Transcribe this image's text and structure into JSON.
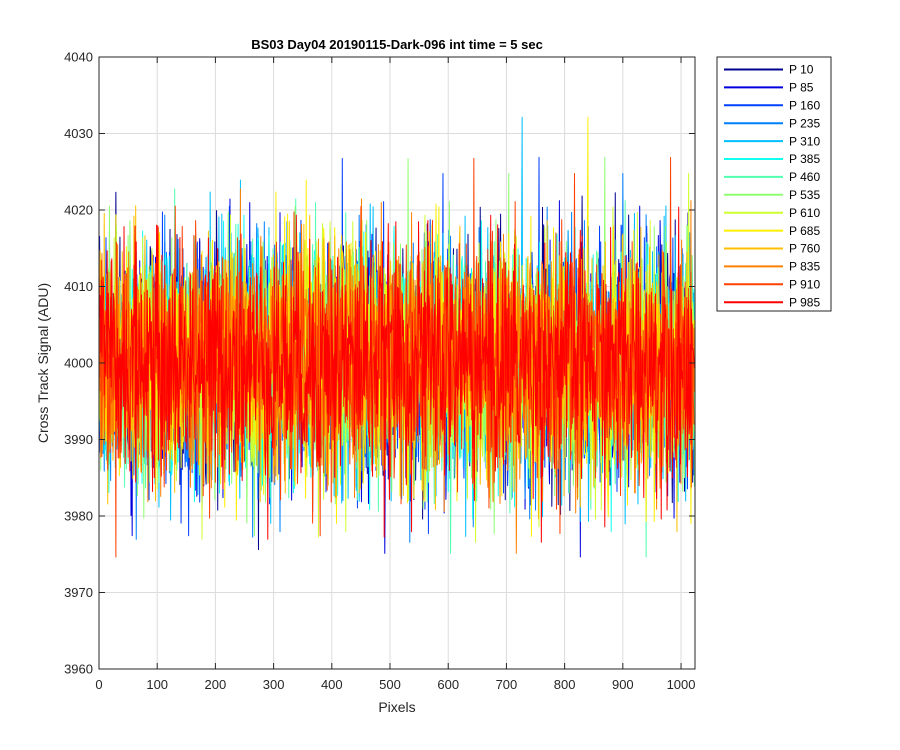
{
  "chart_data": {
    "type": "line",
    "title": "BS03 Day04 20190115-Dark-096 int time = 5 sec",
    "xlabel": "Pixels",
    "ylabel": "Cross Track Signal (ADU)",
    "xlim": [
      0,
      1024
    ],
    "ylim": [
      3960,
      4040
    ],
    "xticks": [
      0,
      100,
      200,
      300,
      400,
      500,
      600,
      700,
      800,
      900,
      1000
    ],
    "yticks": [
      3960,
      3970,
      3980,
      3990,
      4000,
      4010,
      4020,
      4030,
      4040
    ],
    "grid": true,
    "legend_position": "outside-top-right",
    "noise": {
      "mean": 4000,
      "std": 7.5,
      "points": 1024
    },
    "series": [
      {
        "name": "P 10",
        "color": "#00008f"
      },
      {
        "name": "P 85",
        "color": "#0000df"
      },
      {
        "name": "P 160",
        "color": "#0040ff"
      },
      {
        "name": "P 235",
        "color": "#0080ff"
      },
      {
        "name": "P 310",
        "color": "#00bfff"
      },
      {
        "name": "P 385",
        "color": "#10ffef"
      },
      {
        "name": "P 460",
        "color": "#50ffaf"
      },
      {
        "name": "P 535",
        "color": "#8fff70"
      },
      {
        "name": "P 610",
        "color": "#cfff30"
      },
      {
        "name": "P 685",
        "color": "#ffef00"
      },
      {
        "name": "P 760",
        "color": "#ffbf00"
      },
      {
        "name": "P 835",
        "color": "#ff8000"
      },
      {
        "name": "P 910",
        "color": "#ff4000"
      },
      {
        "name": "P 985",
        "color": "#ff0000"
      }
    ]
  }
}
